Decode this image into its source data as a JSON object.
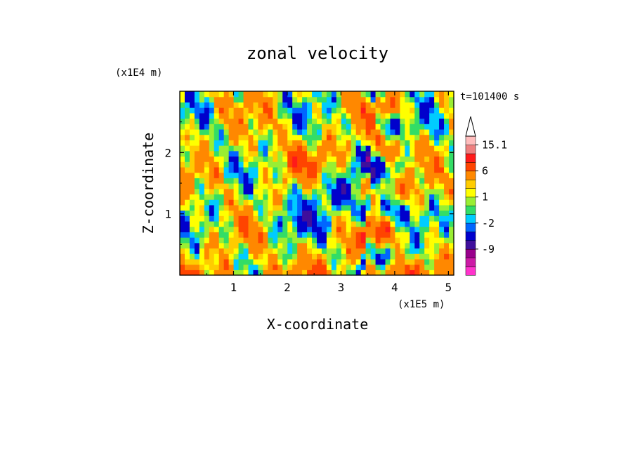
{
  "chart_data": {
    "type": "heatmap",
    "title": "zonal velocity",
    "xlabel": "X-coordinate",
    "ylabel": "Z-coordinate",
    "x_unit": "(x1E5 m)",
    "y_unit": "(x1E4 m)",
    "time_label": "t=101400 s",
    "xlim": [
      0,
      5.1
    ],
    "ylim": [
      0,
      3.0
    ],
    "x_ticks": [
      1,
      2,
      3,
      4,
      5
    ],
    "y_ticks": [
      1,
      2
    ],
    "x_tick_labels": [
      "1",
      "2",
      "3",
      "4",
      "5"
    ],
    "y_tick_labels": [
      "1",
      "2"
    ],
    "colorbar": {
      "levels": [
        -15,
        -12,
        -9,
        -6,
        -3,
        -2,
        -1,
        0,
        1,
        2,
        3,
        6,
        9,
        12,
        15.1
      ],
      "colors": [
        "#ff33cc",
        "#cc1aa6",
        "#99008c",
        "#3f0f9c",
        "#0000cc",
        "#0066ff",
        "#00ccff",
        "#33dd66",
        "#99ee33",
        "#ffff00",
        "#ffcc00",
        "#ff8800",
        "#ff4400",
        "#ff1a1a",
        "#ee8080",
        "#ffbdbd"
      ],
      "tick_labels": [
        "15.1",
        "6",
        "1",
        "-2",
        "-9"
      ],
      "tick_values": [
        15.1,
        6,
        1,
        -2,
        -9
      ],
      "extend_max": true
    },
    "field_description_grid": {
      "nx": 56,
      "nz": 34
    }
  }
}
